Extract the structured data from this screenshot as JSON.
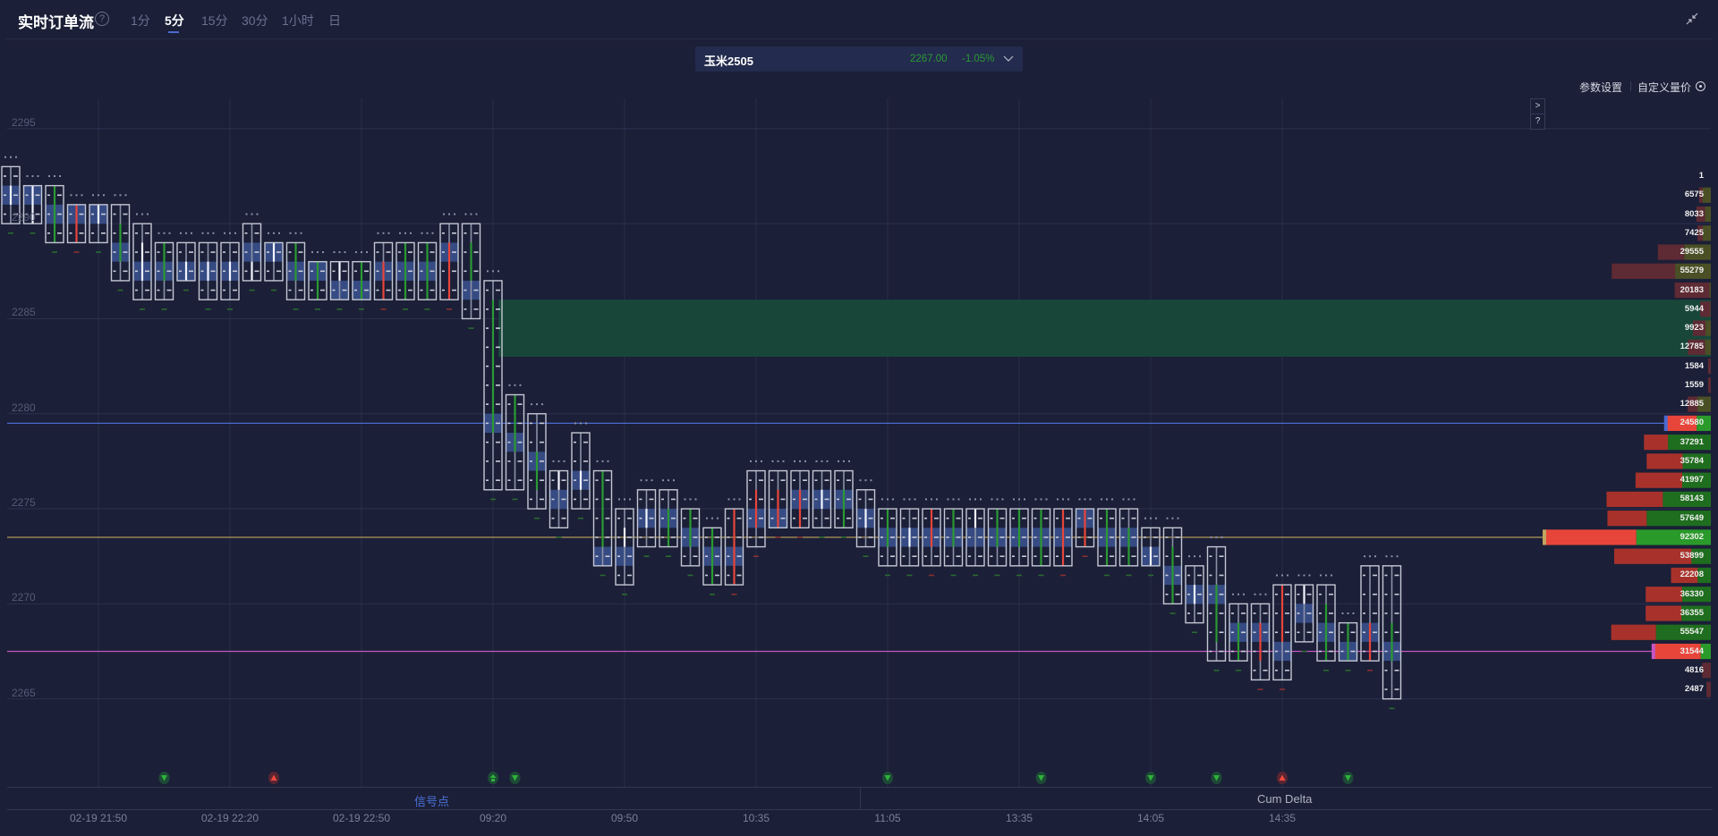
{
  "header": {
    "title": "实时订单流",
    "help_icon": "?",
    "tabs": [
      {
        "label": "1分",
        "active": false
      },
      {
        "label": "5分",
        "active": true
      },
      {
        "label": "15分",
        "active": false
      },
      {
        "label": "30分",
        "active": false
      },
      {
        "label": "1小时",
        "active": false
      },
      {
        "label": "日",
        "active": false
      }
    ],
    "collapse_icon": "collapse-arrows-icon"
  },
  "instrument": {
    "name": "玉米2505",
    "price": "2267.00",
    "change": "-1.05%",
    "change_color": "#2a9a33"
  },
  "toolbar": {
    "params_label": "参数设置",
    "custom_label": "自定义量价",
    "expand_button": ">",
    "help_button": "?"
  },
  "bottom": {
    "tab_signal": "信号点",
    "tab_cumdelta": "Cum Delta"
  },
  "colors": {
    "background": "#1b1f37",
    "bull": "#2a9a33",
    "bear": "#e8453a",
    "poc_highlight": "#3b5390",
    "zone": "#18473a",
    "line_blue": "#4a6ad0",
    "line_gold": "#c2a45e",
    "line_magenta": "#c455c4"
  },
  "chart_data": {
    "type": "footprint",
    "price_ticks": [
      2295,
      2290,
      2285,
      2280,
      2275,
      2270,
      2265
    ],
    "time_labels": [
      {
        "candle": 4,
        "label": "02-19 21:50"
      },
      {
        "candle": 10,
        "label": "02-19 22:20"
      },
      {
        "candle": 16,
        "label": "02-19 22:50"
      },
      {
        "candle": 22,
        "label": "09:20"
      },
      {
        "candle": 28,
        "label": "09:50"
      },
      {
        "candle": 34,
        "label": "10:35"
      },
      {
        "candle": 40,
        "label": "11:05"
      },
      {
        "candle": 46,
        "label": "13:35"
      },
      {
        "candle": 52,
        "label": "14:05"
      },
      {
        "candle": 58,
        "label": "14:35"
      }
    ],
    "candle_fields": [
      "high",
      "low",
      "body_top",
      "body_bottom",
      "direction",
      "poc"
    ],
    "candles": [
      [
        2292,
        2290,
        2291,
        2291,
        "flat",
        2291
      ],
      [
        2291,
        2290,
        2291,
        2290,
        "flat",
        2291
      ],
      [
        2291,
        2289,
        2291,
        2289,
        "up",
        2290
      ],
      [
        2290,
        2289,
        2290,
        2289,
        "down",
        2290
      ],
      [
        2290,
        2289,
        2290,
        2290,
        "flat",
        2290
      ],
      [
        2290,
        2287,
        2289,
        2288,
        "up",
        2288
      ],
      [
        2289,
        2286,
        2288,
        2287,
        "flat",
        2287
      ],
      [
        2288,
        2286,
        2288,
        2287,
        "up",
        2287
      ],
      [
        2288,
        2287,
        2287,
        2287,
        "flat",
        2287
      ],
      [
        2288,
        2286,
        2287,
        2287,
        "flat",
        2287
      ],
      [
        2288,
        2286,
        2287,
        2287,
        "flat",
        2287
      ],
      [
        2289,
        2287,
        2287,
        2287,
        "flat",
        2288
      ],
      [
        2288,
        2287,
        2288,
        2288,
        "flat",
        2288
      ],
      [
        2288,
        2286,
        2288,
        2287,
        "up",
        2287
      ],
      [
        2287,
        2286,
        2287,
        2286,
        "up",
        2287
      ],
      [
        2287,
        2286,
        2287,
        2287,
        "flat",
        2286
      ],
      [
        2287,
        2286,
        2287,
        2286,
        "up",
        2286
      ],
      [
        2288,
        2286,
        2287,
        2286,
        "down",
        2287
      ],
      [
        2288,
        2286,
        2288,
        2286,
        "up",
        2287
      ],
      [
        2288,
        2286,
        2288,
        2286,
        "up",
        2287
      ],
      [
        2289,
        2286,
        2288,
        2286,
        "down",
        2288
      ],
      [
        2289,
        2285,
        2288,
        2287,
        "up",
        2286
      ],
      [
        2286,
        2276,
        2285,
        2279,
        "up",
        2279
      ],
      [
        2280,
        2276,
        2280,
        2278,
        "up",
        2278
      ],
      [
        2279,
        2275,
        2277,
        2276,
        "up",
        2277
      ],
      [
        2276,
        2274,
        2276,
        2276,
        "flat",
        2275
      ],
      [
        2278,
        2275,
        2276,
        2276,
        "flat",
        2276
      ],
      [
        2276,
        2272,
        2276,
        2273,
        "up",
        2272
      ],
      [
        2274,
        2271,
        2273,
        2273,
        "flat",
        2272
      ],
      [
        2275,
        2273,
        2274,
        2274,
        "flat",
        2274
      ],
      [
        2275,
        2273,
        2274,
        2273,
        "up",
        2274
      ],
      [
        2274,
        2272,
        2274,
        2273,
        "up",
        2273
      ],
      [
        2273,
        2271,
        2273,
        2271,
        "up",
        2272
      ],
      [
        2274,
        2271,
        2274,
        2271,
        "down",
        2272
      ],
      [
        2276,
        2273,
        2275,
        2274,
        "down",
        2274
      ],
      [
        2276,
        2274,
        2275,
        2274,
        "down",
        2274
      ],
      [
        2276,
        2274,
        2275,
        2274,
        "down",
        2275
      ],
      [
        2276,
        2274,
        2275,
        2275,
        "flat",
        2275
      ],
      [
        2276,
        2274,
        2275,
        2274,
        "up",
        2275
      ],
      [
        2275,
        2273,
        2274,
        2274,
        "flat",
        2274
      ],
      [
        2274,
        2272,
        2274,
        2273,
        "up",
        2273
      ],
      [
        2274,
        2272,
        2273,
        2273,
        "flat",
        2273
      ],
      [
        2274,
        2272,
        2274,
        2273,
        "down",
        2273
      ],
      [
        2274,
        2272,
        2274,
        2273,
        "up",
        2273
      ],
      [
        2274,
        2272,
        2274,
        2274,
        "flat",
        2273
      ],
      [
        2274,
        2272,
        2274,
        2273,
        "up",
        2273
      ],
      [
        2274,
        2272,
        2274,
        2273,
        "up",
        2273
      ],
      [
        2274,
        2272,
        2274,
        2272,
        "up",
        2273
      ],
      [
        2274,
        2272,
        2274,
        2272,
        "down",
        2273
      ],
      [
        2274,
        2273,
        2274,
        2273,
        "down",
        2274
      ],
      [
        2274,
        2272,
        2274,
        2272,
        "up",
        2273
      ],
      [
        2274,
        2272,
        2273,
        2272,
        "up",
        2273
      ],
      [
        2273,
        2272,
        2272,
        2272,
        "flat",
        2272
      ],
      [
        2273,
        2270,
        2272,
        2270,
        "up",
        2271
      ],
      [
        2271,
        2269,
        2270,
        2270,
        "flat",
        2270
      ],
      [
        2272,
        2267,
        2270,
        2268,
        "up",
        2270
      ],
      [
        2269,
        2267,
        2268,
        2267,
        "up",
        2268
      ],
      [
        2269,
        2266,
        2268,
        2267,
        "down",
        2268
      ],
      [
        2270,
        2266,
        2270,
        2268,
        "down",
        2267
      ],
      [
        2270,
        2268,
        2270,
        2270,
        "flat",
        2269
      ],
      [
        2270,
        2267,
        2269,
        2267,
        "up",
        2268
      ],
      [
        2268,
        2267,
        2268,
        2267,
        "up",
        2267
      ],
      [
        2271,
        2267,
        2268,
        2267,
        "down",
        2268
      ],
      [
        2271,
        2265,
        2268,
        2267,
        "up",
        2267
      ]
    ],
    "zone": {
      "from_candle": 22,
      "price_high": 2285,
      "price_low": 2283
    },
    "levels": [
      {
        "price": 2279,
        "color": "#4a6ad0"
      },
      {
        "price": 2273,
        "color": "#c2a45e"
      },
      {
        "price": 2267,
        "color": "#c455c4"
      }
    ],
    "signals": [
      {
        "candle": 7,
        "type": "sell"
      },
      {
        "candle": 12,
        "type": "buy"
      },
      {
        "candle": 22,
        "type": "buy-green"
      },
      {
        "candle": 23,
        "type": "sell"
      },
      {
        "candle": 40,
        "type": "sell"
      },
      {
        "candle": 47,
        "type": "sell"
      },
      {
        "candle": 52,
        "type": "sell"
      },
      {
        "candle": 55,
        "type": "sell"
      },
      {
        "candle": 58,
        "type": "buy"
      },
      {
        "candle": 61,
        "type": "sell"
      }
    ],
    "volume_profile": [
      {
        "price": 2292,
        "volume": "1",
        "buy_ratio": 0.0,
        "tier": "outer"
      },
      {
        "price": 2291,
        "volume": "6575",
        "buy_ratio": 0.7,
        "tier": "outer"
      },
      {
        "price": 2290,
        "volume": "8033",
        "buy_ratio": 0.4,
        "tier": "outer"
      },
      {
        "price": 2289,
        "volume": "7425",
        "buy_ratio": 0.6,
        "tier": "outer"
      },
      {
        "price": 2288,
        "volume": "29555",
        "buy_ratio": 0.5,
        "tier": "outer"
      },
      {
        "price": 2287,
        "volume": "55279",
        "buy_ratio": 0.36,
        "tier": "outer"
      },
      {
        "price": 2286,
        "volume": "20183",
        "buy_ratio": 0.04,
        "tier": "outer"
      },
      {
        "price": 2285,
        "volume": "5944",
        "buy_ratio": 0.05,
        "tier": "outer"
      },
      {
        "price": 2284,
        "volume": "9923",
        "buy_ratio": 0.3,
        "tier": "outer"
      },
      {
        "price": 2283,
        "volume": "12785",
        "buy_ratio": 0.25,
        "tier": "outer"
      },
      {
        "price": 2282,
        "volume": "1584",
        "buy_ratio": 0.0,
        "tier": "outer"
      },
      {
        "price": 2281,
        "volume": "1559",
        "buy_ratio": 0.0,
        "tier": "outer"
      },
      {
        "price": 2280,
        "volume": "12885",
        "buy_ratio": 0.58,
        "tier": "outer"
      },
      {
        "price": 2279,
        "volume": "24580",
        "buy_ratio": 0.32,
        "tier": "poc",
        "marker": "#4a6ad0"
      },
      {
        "price": 2278,
        "volume": "37291",
        "buy_ratio": 0.64,
        "tier": "value"
      },
      {
        "price": 2277,
        "volume": "35784",
        "buy_ratio": 0.44,
        "tier": "value"
      },
      {
        "price": 2276,
        "volume": "41997",
        "buy_ratio": 0.38,
        "tier": "value"
      },
      {
        "price": 2275,
        "volume": "58143",
        "buy_ratio": 0.46,
        "tier": "value"
      },
      {
        "price": 2274,
        "volume": "57649",
        "buy_ratio": 0.62,
        "tier": "value"
      },
      {
        "price": 2273,
        "volume": "92302",
        "buy_ratio": 0.45,
        "tier": "poc",
        "marker": "#c2a45e"
      },
      {
        "price": 2272,
        "volume": "53899",
        "buy_ratio": 0.2,
        "tier": "value"
      },
      {
        "price": 2271,
        "volume": "22208",
        "buy_ratio": 0.33,
        "tier": "value"
      },
      {
        "price": 2270,
        "volume": "36330",
        "buy_ratio": 0.44,
        "tier": "value"
      },
      {
        "price": 2269,
        "volume": "36355",
        "buy_ratio": 0.45,
        "tier": "value"
      },
      {
        "price": 2268,
        "volume": "55547",
        "buy_ratio": 0.55,
        "tier": "value"
      },
      {
        "price": 2267,
        "volume": "31544",
        "buy_ratio": 0.18,
        "tier": "poc",
        "marker": "#c455c4"
      },
      {
        "price": 2266,
        "volume": "4816",
        "buy_ratio": 0.0,
        "tier": "outer"
      },
      {
        "price": 2265,
        "volume": "2487",
        "buy_ratio": 0.0,
        "tier": "outer"
      }
    ]
  }
}
